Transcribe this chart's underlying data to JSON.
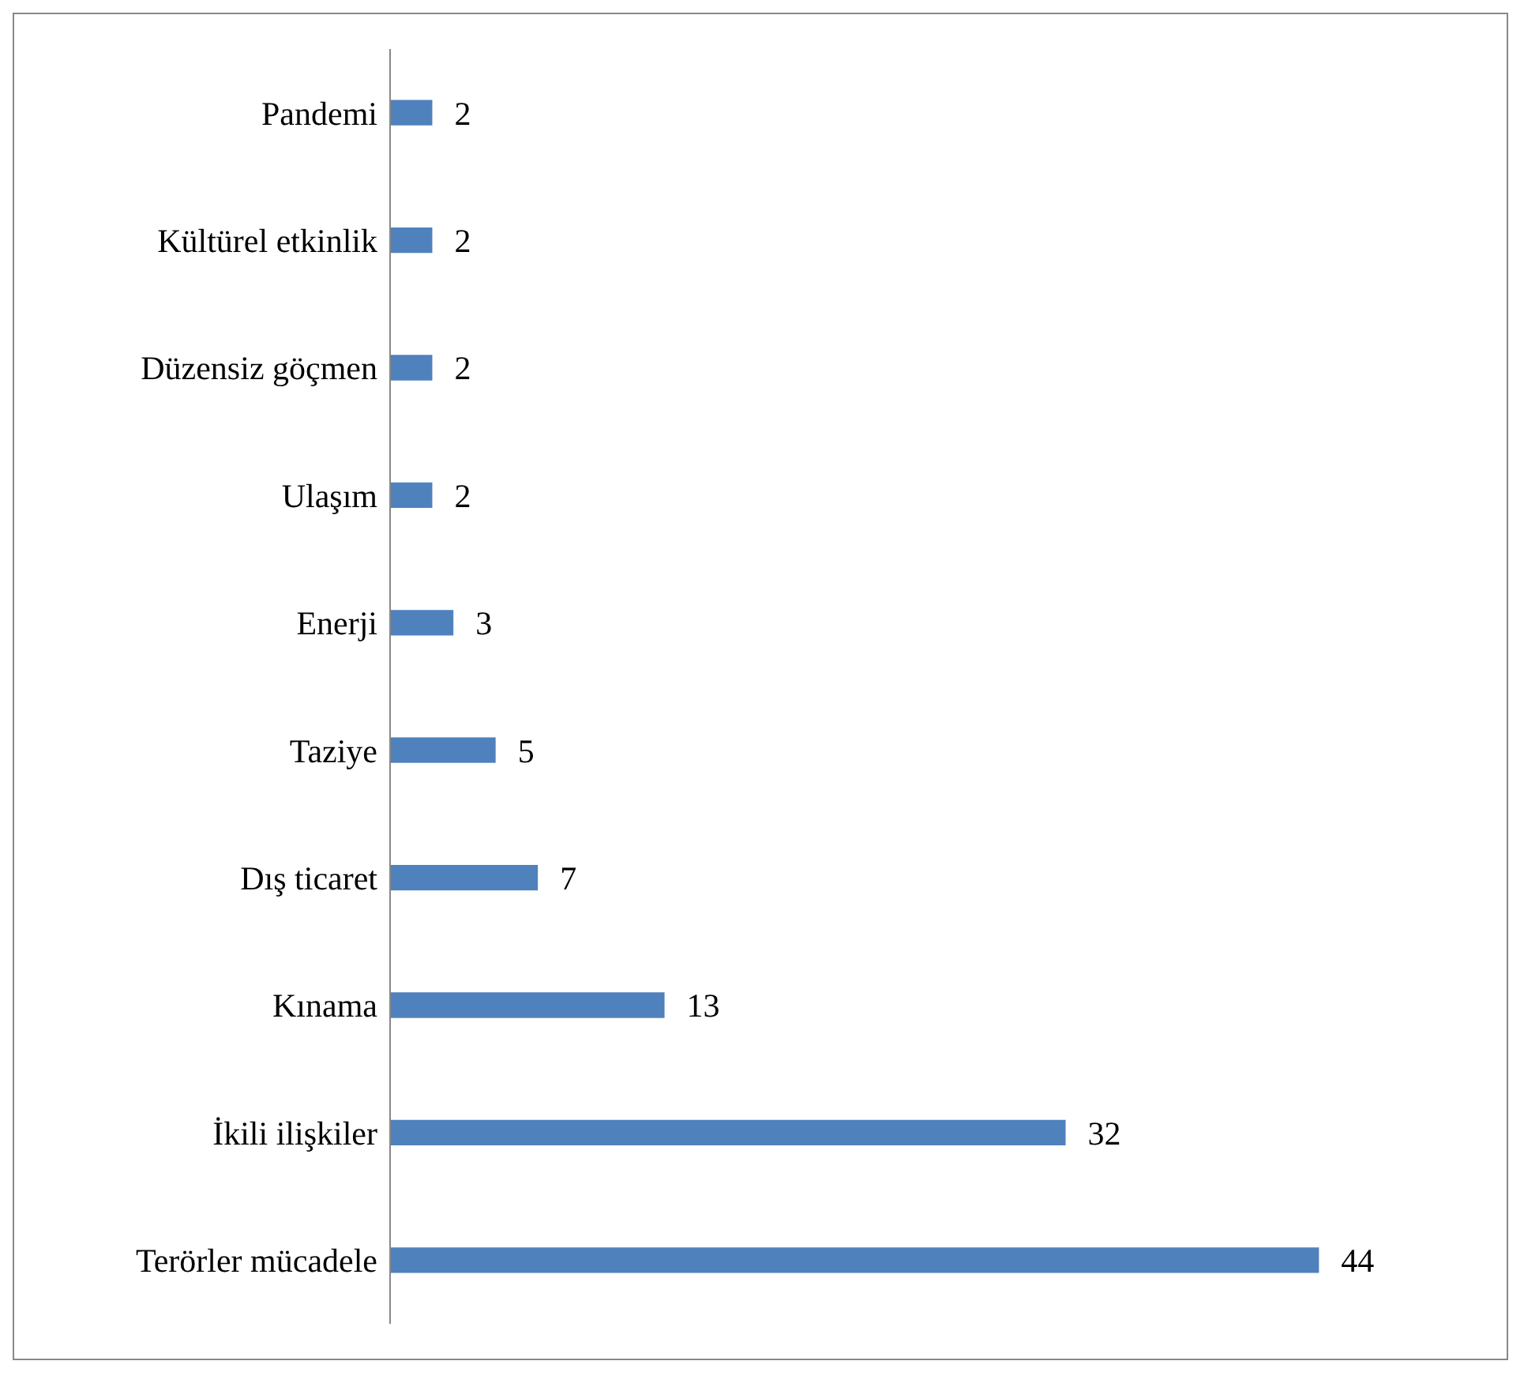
{
  "chart_data": {
    "type": "bar",
    "orientation": "horizontal",
    "categories": [
      "Pandemi",
      "Kültürel etkinlik",
      "Düzensiz göçmen",
      "Ulaşım",
      "Enerji",
      "Taziye",
      "Dış ticaret",
      "Kınama",
      "İkili ilişkiler",
      "Terörler mücadele"
    ],
    "values": [
      2,
      2,
      2,
      2,
      3,
      5,
      7,
      13,
      32,
      44
    ],
    "color": "#4f81bd",
    "data_labels": true
  }
}
